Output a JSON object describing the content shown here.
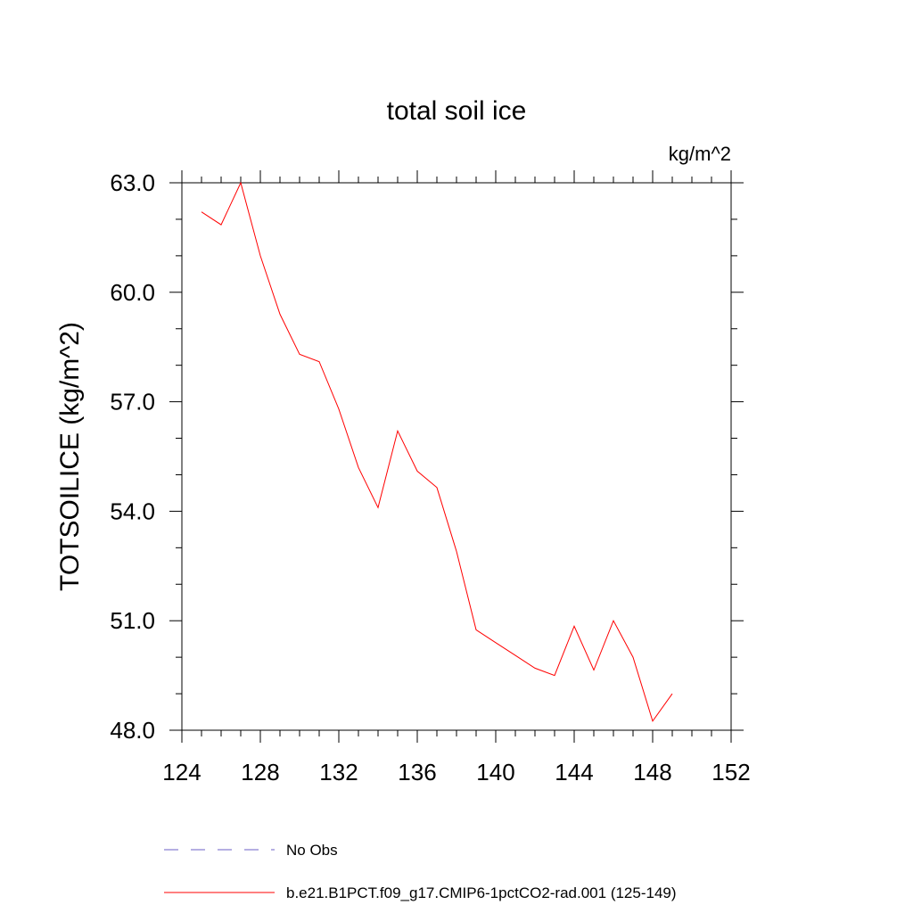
{
  "chart_data": {
    "type": "line",
    "title": "total soil ice",
    "units_label": "kg/m^2",
    "ylabel": "TOTSOILICE  (kg/m^2)",
    "xlabel": "",
    "xlim": [
      124,
      152
    ],
    "ylim": [
      48.0,
      63.0
    ],
    "x_ticks": [
      "124",
      "128",
      "132",
      "136",
      "140",
      "144",
      "148",
      "152"
    ],
    "y_ticks": [
      "48.0",
      "51.0",
      "54.0",
      "57.0",
      "60.0",
      "63.0"
    ],
    "legend_placement": "bottom",
    "series": [
      {
        "name": "No Obs",
        "color": "#6b5fc7",
        "style": "dashed",
        "x": [],
        "values": []
      },
      {
        "name": "b.e21.B1PCT.f09_g17.CMIP6-1pctCO2-rad.001 (125-149)",
        "color": "#ff0000",
        "style": "solid",
        "x": [
          125,
          126,
          127,
          128,
          129,
          130,
          131,
          132,
          133,
          134,
          135,
          136,
          137,
          138,
          139,
          140,
          141,
          142,
          143,
          144,
          145,
          146,
          147,
          148,
          149
        ],
        "values": [
          62.2,
          61.85,
          63.0,
          61.0,
          59.4,
          58.3,
          58.1,
          56.8,
          55.2,
          54.1,
          56.2,
          55.1,
          54.65,
          52.9,
          50.75,
          50.4,
          50.05,
          49.7,
          49.5,
          50.85,
          49.65,
          51.0,
          50.0,
          48.25,
          49.0
        ]
      }
    ]
  }
}
